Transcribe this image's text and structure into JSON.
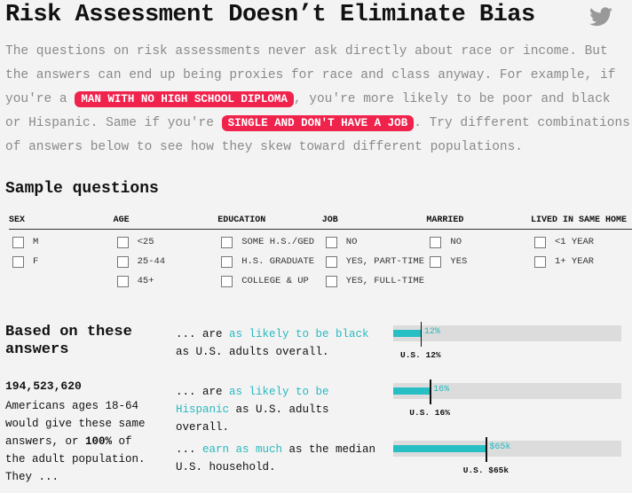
{
  "header": {
    "title": "Risk Assessment Doesn’t Eliminate Bias"
  },
  "intro": {
    "text_1": "The questions on risk assessments never ask directly about race or income. But the answers can end up being proxies for race and class anyway. For example, if you're a",
    "pill_1": "MAN WITH NO HIGH SCHOOL DIPLOMA",
    "text_2": ", you're more likely to be poor and black or Hispanic. Same if you're",
    "pill_2": "SINGLE AND DON'T HAVE A JOB",
    "text_3": ". Try different combinations of answers below to see how they skew toward different populations."
  },
  "questions": {
    "heading": "Sample questions",
    "columns": [
      {
        "header": "SEX",
        "options": [
          "M",
          "F"
        ]
      },
      {
        "header": "AGE",
        "options": [
          "<25",
          "25-44",
          "45+"
        ]
      },
      {
        "header": "EDUCATION",
        "options": [
          "SOME H.S./GED",
          "H.S. GRADUATE",
          "COLLEGE & UP"
        ]
      },
      {
        "header": "JOB",
        "options": [
          "NO",
          "YES, PART-TIME",
          "YES, FULL-TIME"
        ]
      },
      {
        "header": "MARRIED",
        "options": [
          "NO",
          "YES"
        ]
      },
      {
        "header": "LIVED IN SAME HOME",
        "options": [
          "<1 YEAR",
          "1+ YEAR"
        ]
      }
    ]
  },
  "results": {
    "heading": "Based on these answers",
    "count": "194,523,620",
    "text_1": "Americans ages 18-64 would give these same answers, or ",
    "share": "100%",
    "text_2": " of the adult population. They ...",
    "comparisons": [
      {
        "prefix": "... are ",
        "link": "as likely to be black",
        "suffix": " as U.S. adults overall.",
        "value": 12,
        "value_label": "12%",
        "us_value": 12,
        "us_label": "U.S. 12%",
        "xlim": [
          0,
          100
        ]
      },
      {
        "prefix": "... are ",
        "link": "as likely to be Hispanic",
        "suffix": " as U.S. adults overall.",
        "value": 16,
        "value_label": "16%",
        "us_value": 16,
        "us_label": "U.S. 16%",
        "xlim": [
          0,
          100
        ]
      },
      {
        "prefix": "... ",
        "link": "earn as much",
        "suffix": " as the median U.S. household.",
        "value": 65000,
        "value_label": "$65k",
        "us_value": 65000,
        "us_label": "U.S. $65k",
        "xlim": [
          0,
          160000
        ]
      }
    ]
  }
}
